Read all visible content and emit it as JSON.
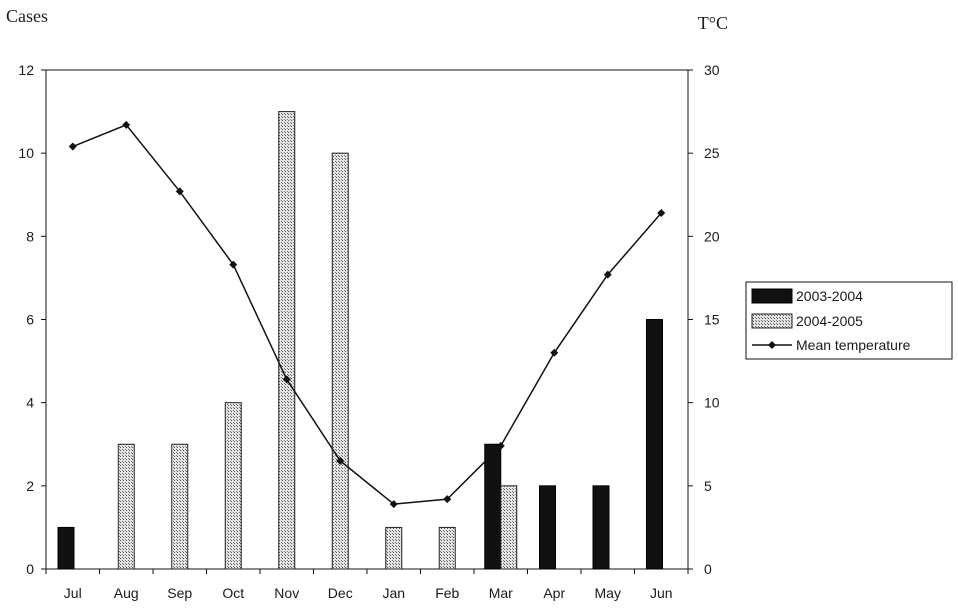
{
  "chart_data": {
    "type": "bar",
    "categories": [
      "Jul",
      "Aug",
      "Sep",
      "Oct",
      "Nov",
      "Dec",
      "Jan",
      "Feb",
      "Mar",
      "Apr",
      "May",
      "Jun"
    ],
    "ylabel": "Cases",
    "y2label": "T°C",
    "ylim": [
      0,
      12
    ],
    "yticks": [
      0,
      2,
      4,
      6,
      8,
      10,
      12
    ],
    "y2lim": [
      0,
      30
    ],
    "y2ticks": [
      0,
      5,
      10,
      15,
      20,
      25,
      30
    ],
    "grid": false,
    "legend_position": "right",
    "series": [
      {
        "name": "2003-2004",
        "kind": "bar",
        "axis": "left",
        "fill": "solid-black",
        "values": [
          1,
          0,
          0,
          0,
          0,
          0,
          0,
          0,
          3,
          2,
          2,
          6
        ]
      },
      {
        "name": "2004-2005",
        "kind": "bar",
        "axis": "left",
        "fill": "crosshatch",
        "values": [
          0,
          3,
          3,
          4,
          11,
          10,
          1,
          1,
          2,
          0,
          0,
          0
        ]
      },
      {
        "name": "Mean temperature",
        "kind": "line",
        "axis": "right",
        "marker": "diamond",
        "values": [
          25.4,
          26.7,
          22.7,
          18.3,
          11.4,
          6.5,
          3.9,
          4.2,
          7.4,
          13.0,
          17.7,
          21.4
        ]
      }
    ]
  },
  "colors": {
    "bar_solid": "#111111",
    "hatch_fg": "#555555",
    "hatch_bg": "#e4e4e4",
    "line": "#111111",
    "axis": "#111111"
  }
}
